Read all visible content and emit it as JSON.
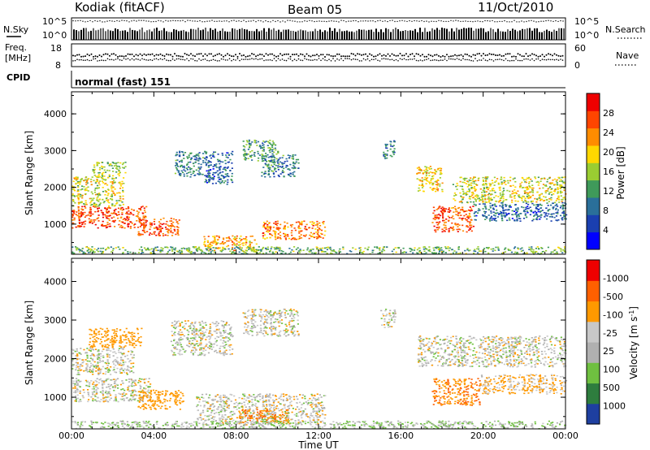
{
  "header": {
    "station": "Kodiak (fitACF)",
    "beam": "Beam 05",
    "date": "11/Oct/2010"
  },
  "noise_panel": {
    "left_label": "N.Sky",
    "right_label": "N.Search",
    "ticks": [
      "10^5",
      "10^0"
    ]
  },
  "freq_panel": {
    "left_label_line1": "Freq.",
    "left_label_line2": "[MHz]",
    "left_ticks": [
      "18",
      "8"
    ],
    "right_ticks": [
      "60",
      "0"
    ],
    "right_label": "Nave"
  },
  "cpid_panel": {
    "label": "CPID",
    "text": "normal (fast) 151"
  },
  "chart_data": [
    {
      "type": "heatmap",
      "title": "",
      "xlabel": "Time UT",
      "ylabel": "Slant Range [km]",
      "x_ticks": [
        "00:00",
        "04:00",
        "08:00",
        "12:00",
        "16:00",
        "20:00",
        "00:00"
      ],
      "y_ticks": [
        "1000",
        "2000",
        "3000",
        "4000"
      ],
      "xlim": [
        0,
        24
      ],
      "ylim": [
        180,
        4600
      ],
      "colorbar": {
        "label": "Power [dB]",
        "ticks": [
          "4",
          "8",
          "12",
          "16",
          "20",
          "24",
          "28"
        ],
        "colors": [
          "#0000ff",
          "#1a3fb0",
          "#2a6f9a",
          "#3f9a5a",
          "#9acd32",
          "#ffd700",
          "#ff8c00",
          "#ff4500",
          "#ee0000"
        ]
      },
      "regions": [
        {
          "t": [
            0.0,
            3.6
          ],
          "r": [
            900,
            1500
          ],
          "value": 27
        },
        {
          "t": [
            0.0,
            2.5
          ],
          "r": [
            1500,
            2300
          ],
          "value": 18
        },
        {
          "t": [
            1.0,
            2.6
          ],
          "r": [
            2300,
            2700
          ],
          "value": 16
        },
        {
          "t": [
            3.2,
            5.2
          ],
          "r": [
            700,
            1200
          ],
          "value": 26
        },
        {
          "t": [
            5.0,
            6.4
          ],
          "r": [
            2300,
            3000
          ],
          "value": 10
        },
        {
          "t": [
            6.4,
            7.8
          ],
          "r": [
            2100,
            3000
          ],
          "value": 8
        },
        {
          "t": [
            8.3,
            10.0
          ],
          "r": [
            2700,
            3300
          ],
          "value": 12
        },
        {
          "t": [
            9.2,
            11.0
          ],
          "r": [
            2300,
            2900
          ],
          "value": 10
        },
        {
          "t": [
            6.4,
            9.0
          ],
          "r": [
            300,
            700
          ],
          "value": 22
        },
        {
          "t": [
            9.2,
            12.3
          ],
          "r": [
            600,
            1100
          ],
          "value": 24
        },
        {
          "t": [
            15.1,
            15.7
          ],
          "r": [
            2800,
            3300
          ],
          "value": 10
        },
        {
          "t": [
            16.7,
            18.0
          ],
          "r": [
            1900,
            2600
          ],
          "value": 20
        },
        {
          "t": [
            17.5,
            19.5
          ],
          "r": [
            800,
            1500
          ],
          "value": 26
        },
        {
          "t": [
            18.5,
            24.0
          ],
          "r": [
            1600,
            2300
          ],
          "value": 18
        },
        {
          "t": [
            19.5,
            24.0
          ],
          "r": [
            1100,
            1600
          ],
          "value": 8
        },
        {
          "t": [
            0.0,
            24.0
          ],
          "r": [
            200,
            400
          ],
          "value": 14
        }
      ]
    },
    {
      "type": "heatmap",
      "title": "",
      "xlabel": "Time UT",
      "ylabel": "Slant Range [km]",
      "x_ticks": [
        "00:00",
        "04:00",
        "08:00",
        "12:00",
        "16:00",
        "20:00",
        "00:00"
      ],
      "y_ticks": [
        "1000",
        "2000",
        "3000",
        "4000"
      ],
      "xlim": [
        0,
        24
      ],
      "ylim": [
        180,
        4600
      ],
      "colorbar": {
        "label": "Velocity [m s^-1]",
        "ticks": [
          "1000",
          "500",
          "100",
          "25",
          "-25",
          "-100",
          "-500",
          "-1000"
        ],
        "colors": [
          "#1e3fa0",
          "#2e7d3e",
          "#6fc040",
          "#b0b0b0",
          "#c8c8c8",
          "#ff9900",
          "#ff6000",
          "#ee0000"
        ]
      },
      "regions": [
        {
          "t": [
            0.0,
            3.8
          ],
          "r": [
            900,
            1500
          ],
          "value": 0
        },
        {
          "t": [
            0.0,
            3.0
          ],
          "r": [
            1600,
            2300
          ],
          "value": 0
        },
        {
          "t": [
            0.8,
            3.4
          ],
          "r": [
            2300,
            2800
          ],
          "value": -200
        },
        {
          "t": [
            3.2,
            5.4
          ],
          "r": [
            700,
            1200
          ],
          "value": -150
        },
        {
          "t": [
            4.8,
            7.8
          ],
          "r": [
            2100,
            3000
          ],
          "value": 0
        },
        {
          "t": [
            8.3,
            11.0
          ],
          "r": [
            2600,
            3300
          ],
          "value": 0
        },
        {
          "t": [
            6.0,
            12.3
          ],
          "r": [
            300,
            1100
          ],
          "value": 0
        },
        {
          "t": [
            8.0,
            10.5
          ],
          "r": [
            350,
            700
          ],
          "value": -300
        },
        {
          "t": [
            15.0,
            15.7
          ],
          "r": [
            2800,
            3300
          ],
          "value": 0
        },
        {
          "t": [
            16.8,
            24.0
          ],
          "r": [
            1800,
            2600
          ],
          "value": 0
        },
        {
          "t": [
            17.5,
            19.8
          ],
          "r": [
            800,
            1500
          ],
          "value": -300
        },
        {
          "t": [
            19.8,
            24.0
          ],
          "r": [
            1100,
            1600
          ],
          "value": -80
        },
        {
          "t": [
            0.0,
            24.0
          ],
          "r": [
            200,
            400
          ],
          "value": 50
        }
      ]
    }
  ],
  "noise_series": {
    "n_sky_level": 0.45,
    "n_search_level": 0.85
  }
}
